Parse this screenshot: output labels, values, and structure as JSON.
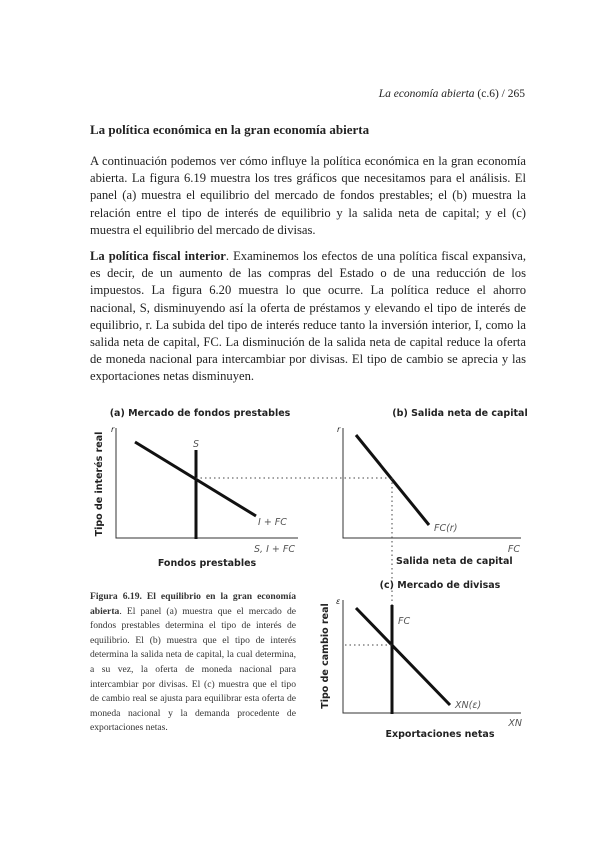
{
  "header": {
    "running_title": "La economía abierta",
    "chapter": "(c.6)",
    "separator": "/",
    "page_number": "265"
  },
  "section_title": "La política económica en la gran economía abierta",
  "paragraph_1": "A continuación podemos ver cómo influye la política económica en la gran economía abierta. La figura 6.19 muestra los tres gráficos que necesitamos para el análisis. El panel (a) muestra el equilibrio del mercado de fondos prestables; el (b) muestra la relación entre el tipo de interés de equilibrio y la salida neta de capital; y el (c) muestra el equilibrio del mercado de divisas.",
  "paragraph_2": {
    "lead": "La política fiscal interior",
    "text": ". Examinemos los efectos de una política fiscal expansiva, es decir, de un aumento de las compras del Estado o de una reducción de los impuestos. La figura 6.20 muestra lo que ocurre. La política reduce el ahorro nacional, S, disminuyendo así la oferta de préstamos y elevando el tipo de interés de equilibrio, r. La subida del tipo de interés reduce tanto la inversión interior, I, como la salida neta de capital, FC. La disminución de la salida neta de capital reduce la oferta de moneda nacional para intercambiar por divisas. El tipo de cambio se aprecia y las exportaciones netas disminuyen."
  },
  "figure": {
    "panel_a": {
      "title": "(a) Mercado de fondos prestables",
      "y_axis_symbol": "r",
      "y_label": "Tipo de interés real",
      "x_axis_symbol": "S, I + FC",
      "x_label": "Fondos prestables",
      "supply_label": "S",
      "demand_label": "I + FC"
    },
    "panel_b": {
      "title": "(b) Salida neta de capital",
      "y_axis_symbol": "r",
      "x_axis_symbol": "FC",
      "x_label": "Salida neta de capital",
      "curve_label": "FC(r)"
    },
    "panel_c": {
      "title": "(c) Mercado de divisas",
      "y_axis_symbol": "ε",
      "y_label": "Tipo de cambio real",
      "x_axis_symbol": "XN",
      "x_label": "Exportaciones netas",
      "supply_label": "FC",
      "demand_label": "XN(ε)"
    },
    "caption": {
      "lead": "Figura 6.19. El equilibrio en la gran economía abierta",
      "text": ". El panel (a) muestra que el mercado de fondos prestables determina el tipo de interés de equilibrio. El (b) muestra que el tipo de interés determina la salida neta de capital, la cual determina, a su vez, la oferta de moneda nacional para intercambiar por divisas. El (c) muestra que el tipo de cambio real se ajusta para equilibrar esta oferta de moneda nacional y la demanda procedente de exportaciones netas."
    }
  }
}
